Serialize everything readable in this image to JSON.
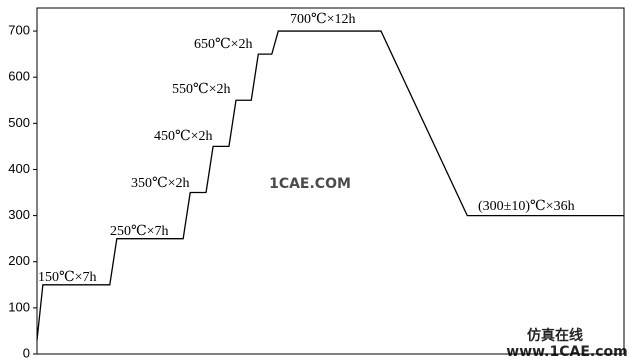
{
  "chart_data": {
    "type": "line",
    "annotations": [
      "150℃×7h",
      "250℃×7h",
      "350℃×2h",
      "450℃×2h",
      "550℃×2h",
      "650℃×2h",
      "700℃×12h",
      "(300±10)℃×36h"
    ],
    "watermarks": [
      "1CAE.COM",
      "仿真在线",
      "www.1CAE.com"
    ],
    "x": [
      0,
      1.0,
      12.4,
      13.6,
      24.9,
      26.1,
      28.8,
      30.0,
      32.7,
      33.9,
      36.5,
      37.7,
      40.0,
      41.1,
      58.6,
      73.3,
      100
    ],
    "values": [
      30,
      150,
      150,
      250,
      250,
      350,
      350,
      450,
      450,
      550,
      550,
      650,
      650,
      700,
      700,
      300,
      300
    ],
    "color": "#000000",
    "xlim": [
      0,
      100
    ],
    "ylim": [
      0,
      750
    ],
    "yticks": [
      0,
      100,
      200,
      300,
      400,
      500,
      600,
      700
    ]
  }
}
